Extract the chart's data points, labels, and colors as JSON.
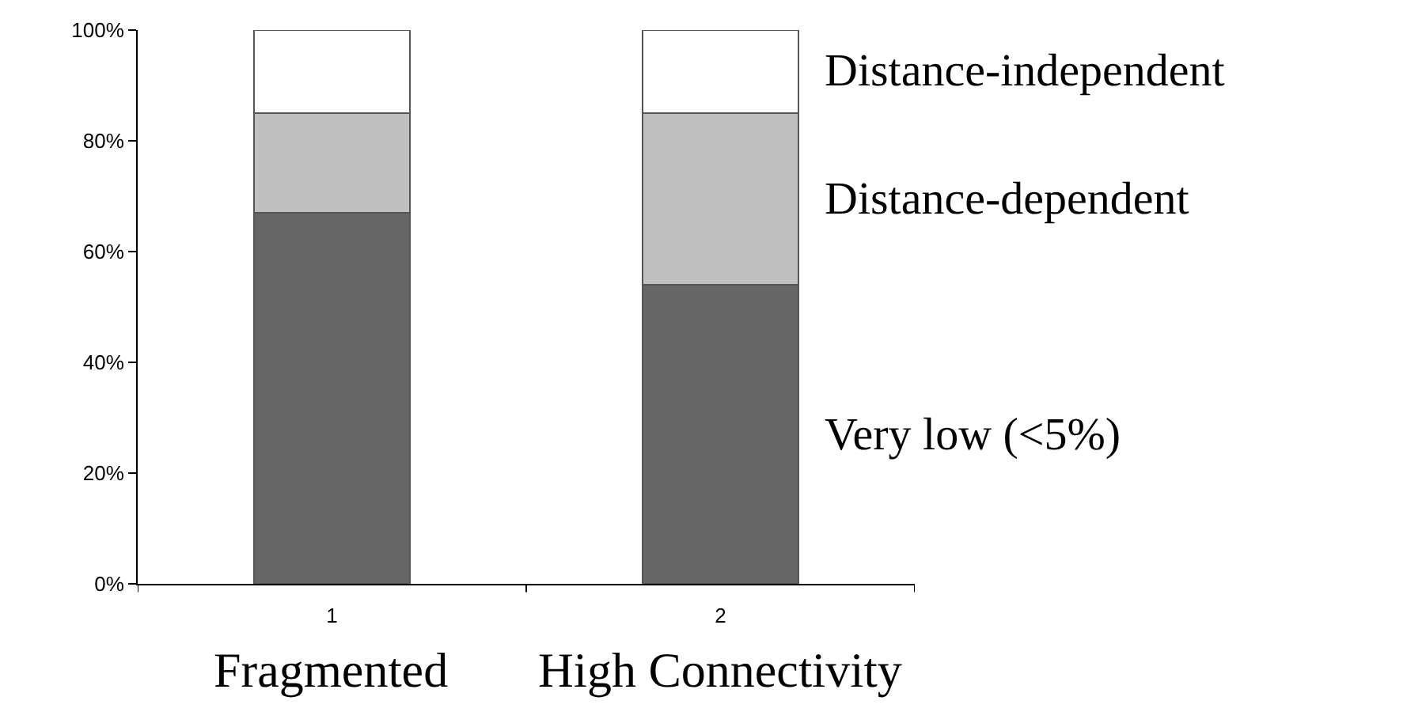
{
  "chart_data": {
    "type": "bar",
    "stacked": true,
    "categories": [
      "1",
      "2"
    ],
    "series": [
      {
        "name": "Very low (<5%)",
        "color": "#666666",
        "values": [
          67,
          54
        ]
      },
      {
        "name": "Distance-dependent",
        "color": "#c0c0c0",
        "values": [
          18,
          31
        ]
      },
      {
        "name": "Distance-independent",
        "color": "#ffffff",
        "values": [
          15,
          15
        ]
      }
    ],
    "ylim": [
      0,
      100
    ],
    "yticks": [
      {
        "value": 0,
        "label": "0%"
      },
      {
        "value": 20,
        "label": "20%"
      },
      {
        "value": 40,
        "label": "40%"
      },
      {
        "value": 60,
        "label": "60%"
      },
      {
        "value": 80,
        "label": "80%"
      },
      {
        "value": 100,
        "label": "100%"
      }
    ],
    "annotations": [
      "Fragmented",
      "High Connectivity"
    ]
  }
}
